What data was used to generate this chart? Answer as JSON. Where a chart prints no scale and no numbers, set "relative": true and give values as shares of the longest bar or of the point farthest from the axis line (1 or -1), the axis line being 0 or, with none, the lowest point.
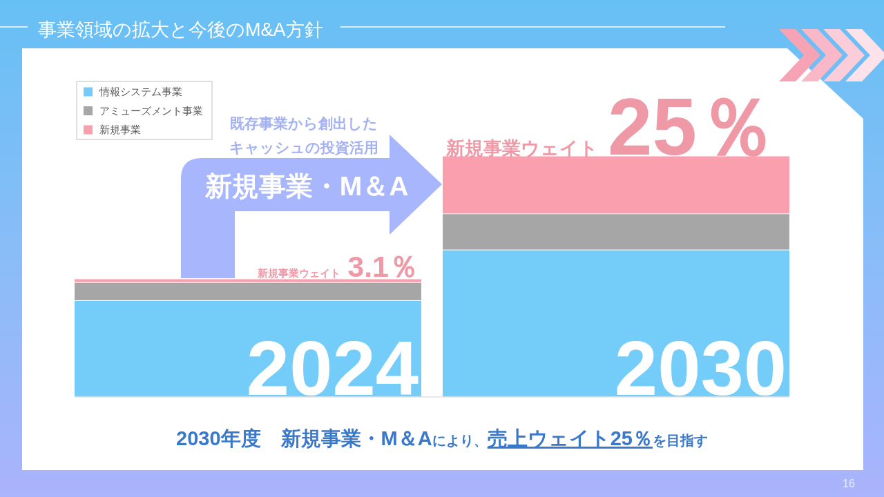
{
  "chart_data": {
    "type": "bar",
    "stacked": true,
    "relative": true,
    "title": "事業領域の拡大と今後のM&A方針",
    "categories": [
      "2024",
      "2030"
    ],
    "series": [
      {
        "name": "情報システム事業",
        "color": "#74cdf9",
        "values": [
          0.4,
          0.61
        ]
      },
      {
        "name": "アミューズメント事業",
        "color": "#a6a6a6",
        "values": [
          0.075,
          0.15
        ]
      },
      {
        "name": "新規事業",
        "color": "#f99fae",
        "values": [
          0.015,
          0.24
        ]
      }
    ],
    "legend": "top left",
    "annotations": [
      "既存事業から創出した",
      "キャッシュの投資活用",
      "新規事業・M＆A",
      {
        "text": "新規事業ウェイト3.1％",
        "x": "2024",
        "y": 0.49
      },
      {
        "text": "新規事業ウェイト25％",
        "x": "2030",
        "y": 1.0
      },
      "**2030年度　新規事業・M＆A**により、**売上ウェイト25％**を目指す",
      "16"
    ]
  }
}
